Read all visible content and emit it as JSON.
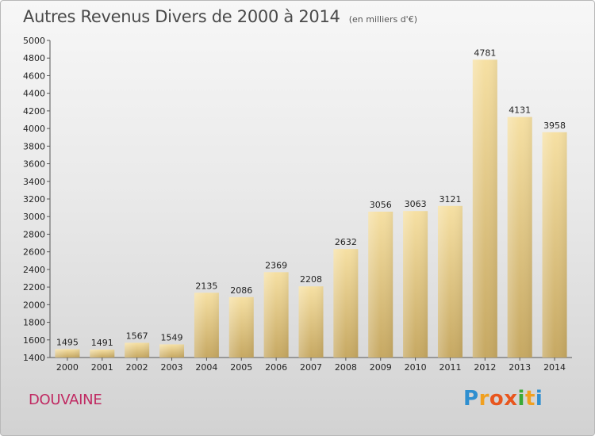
{
  "chart_data": {
    "type": "bar",
    "title": "Autres Revenus Divers de 2000 à 2014",
    "subtitle": "(en milliers d'€)",
    "categories": [
      "2000",
      "2001",
      "2002",
      "2003",
      "2004",
      "2005",
      "2006",
      "2007",
      "2008",
      "2009",
      "2010",
      "2011",
      "2012",
      "2013",
      "2014"
    ],
    "values": [
      1495,
      1491,
      1567,
      1549,
      2135,
      2086,
      2369,
      2208,
      2632,
      3056,
      3063,
      3121,
      4781,
      4131,
      3958
    ],
    "ylim": [
      1400,
      5000
    ],
    "yticks": [
      1400,
      1600,
      1800,
      2000,
      2200,
      2400,
      2600,
      2800,
      3000,
      3200,
      3400,
      3600,
      3800,
      4000,
      4200,
      4400,
      4600,
      4800,
      5000
    ],
    "grid": false,
    "bar_color": "#e2c67a"
  },
  "commune": "DOUVAINE",
  "logo": {
    "letters": [
      "P",
      "r",
      "o",
      "x",
      "i",
      "t",
      "i"
    ],
    "colors": [
      "#2f8fd0",
      "#f0a020",
      "#e8561e",
      "#e8561e",
      "#3aa935",
      "#f0a020",
      "#2f8fd0"
    ]
  }
}
